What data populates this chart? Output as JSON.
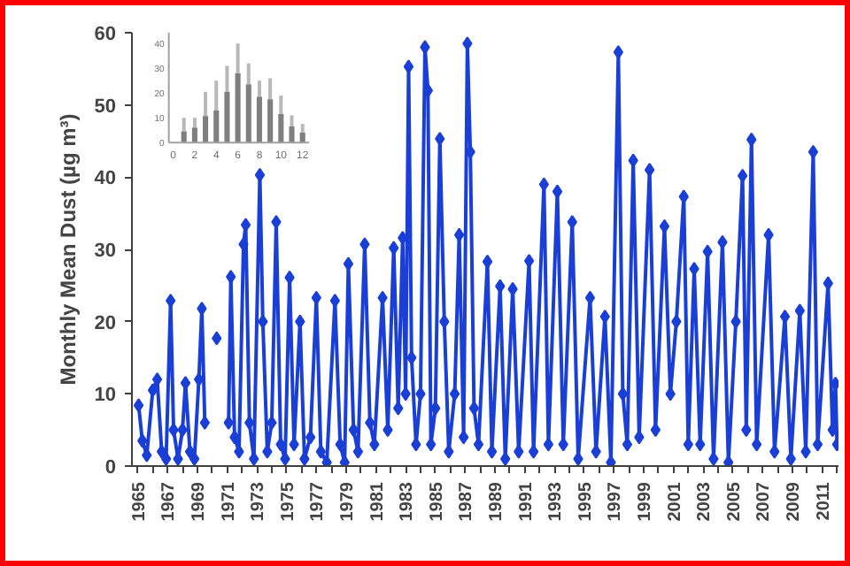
{
  "chart_data": [
    {
      "type": "line",
      "ylabel": "Monthly Mean Dust (µg m³)",
      "marker": "diamond",
      "line_style": "solid",
      "grid": false,
      "xlim": [
        1964.6,
        2012.1
      ],
      "ylim": [
        0,
        60
      ],
      "yticks": [
        0,
        10,
        20,
        30,
        40,
        50,
        60
      ],
      "xticks": [
        1965,
        {
          "value": 1966,
          "label": null
        },
        1967,
        {
          "value": 1968,
          "label": null
        },
        1969,
        {
          "value": 1970,
          "label": null
        },
        1971,
        {
          "value": 1972,
          "label": null
        },
        1973,
        {
          "value": 1974,
          "label": null
        },
        1975,
        {
          "value": 1976,
          "label": null
        },
        1977,
        {
          "value": 1978,
          "label": null
        },
        1979,
        {
          "value": 1980,
          "label": null
        },
        1981,
        {
          "value": 1982,
          "label": null
        },
        1983,
        {
          "value": 1984,
          "label": null
        },
        1985,
        {
          "value": 1986,
          "label": null
        },
        1987,
        {
          "value": 1988,
          "label": null
        },
        1989,
        {
          "value": 1990,
          "label": null
        },
        1991,
        {
          "value": 1992,
          "label": null
        },
        1993,
        {
          "value": 1994,
          "label": null
        },
        1995,
        {
          "value": 1996,
          "label": null
        },
        1997,
        {
          "value": 1998,
          "label": null
        },
        1999,
        {
          "value": 2000,
          "label": null
        },
        2001,
        {
          "value": 2002,
          "label": null
        },
        2003,
        {
          "value": 2004,
          "label": null
        },
        2005,
        {
          "value": 2006,
          "label": null
        },
        2007,
        {
          "value": 2008,
          "label": null
        },
        2009,
        {
          "value": 2010,
          "label": null
        },
        2011,
        {
          "value": 2012,
          "label": null
        }
      ],
      "series": [
        {
          "color": "#1a3fd6",
          "x": [
            1965.05,
            1965.3,
            1965.6,
            1966.0,
            1966.3,
            1966.6,
            1966.9,
            1967.2,
            1967.4,
            1967.7,
            1968.0,
            1968.2,
            1968.5,
            1968.8,
            1969.1,
            1969.3,
            1969.5,
            1969.9,
            1970.3,
            1970.8,
            1971.1,
            1971.25,
            1971.5,
            1971.8,
            1972.1,
            1972.25,
            1972.5,
            1972.8,
            1973.2,
            1973.4,
            1973.7,
            1974.0,
            1974.3,
            1974.6,
            1974.9,
            1975.2,
            1975.5,
            1975.9,
            1976.2,
            1976.6,
            1977.0,
            1977.3,
            1977.7,
            1978.25,
            1978.6,
            1978.9,
            1979.15,
            1979.5,
            1979.8,
            1980.25,
            1980.6,
            1980.9,
            1981.45,
            1981.8,
            1982.2,
            1982.5,
            1982.8,
            1983.0,
            1983.2,
            1983.4,
            1983.7,
            1984.0,
            1984.3,
            1984.5,
            1984.7,
            1985.0,
            1985.3,
            1985.6,
            1985.9,
            1986.3,
            1986.6,
            1986.9,
            1987.15,
            1987.35,
            1987.6,
            1987.9,
            1988.5,
            1988.8,
            1989.35,
            1989.7,
            1990.2,
            1990.6,
            1991.3,
            1991.6,
            1992.3,
            1992.6,
            1993.2,
            1993.6,
            1994.2,
            1994.6,
            1995.4,
            1995.8,
            1996.4,
            1996.8,
            1997.3,
            1997.6,
            1997.9,
            1998.3,
            1998.7,
            1999.4,
            1999.8,
            2000.4,
            2000.8,
            2001.2,
            2001.7,
            2002.0,
            2002.4,
            2002.8,
            2003.3,
            2003.7,
            2004.3,
            2004.7,
            2005.2,
            2005.65,
            2005.9,
            2006.25,
            2006.6,
            2007.4,
            2007.8,
            2008.5,
            2008.9,
            2009.5,
            2009.9,
            2010.4,
            2010.7,
            2011.4,
            2011.7,
            2011.9,
            2012.0
          ],
          "values": [
            8.4,
            3.5,
            1.5,
            10.5,
            12,
            2,
            1,
            22.9,
            5,
            1,
            5,
            11.5,
            2,
            1,
            12,
            21.8,
            6,
            null,
            17.7,
            null,
            6,
            26.2,
            4,
            2,
            30.7,
            33.4,
            6,
            1,
            40.3,
            20,
            2,
            6,
            33.8,
            3,
            1,
            26.1,
            3,
            20,
            1,
            4,
            23.3,
            2,
            0.5,
            22.9,
            3,
            0.5,
            28,
            5,
            2,
            30.7,
            6,
            3,
            23.3,
            5,
            30.2,
            8,
            31.6,
            10,
            55.3,
            15,
            3,
            10,
            58,
            52,
            3,
            8,
            45.3,
            20,
            2,
            10,
            32,
            4,
            58.5,
            43.5,
            8,
            3,
            28.3,
            2,
            24.9,
            1,
            24.5,
            2,
            28.4,
            2,
            39,
            3,
            38,
            3,
            33.8,
            1,
            23.3,
            2,
            20.7,
            0.5,
            57.3,
            10,
            3,
            42.3,
            4,
            41,
            5,
            33.2,
            10,
            20,
            37.3,
            3,
            27.3,
            3,
            29.7,
            1,
            31,
            0.5,
            20,
            40.2,
            5,
            45.2,
            3,
            32,
            2,
            20.7,
            1,
            21.5,
            2,
            43.5,
            3,
            25.3,
            5,
            11.4,
            3
          ]
        }
      ]
    },
    {
      "type": "bar",
      "color": "#7f7f7f",
      "grid": false,
      "x": [
        1,
        2,
        3,
        4,
        5,
        6,
        7,
        8,
        9,
        10,
        11,
        12
      ],
      "values": [
        4.5,
        6,
        10.7,
        13,
        20.5,
        28,
        23.5,
        18.5,
        17.5,
        11.5,
        6.5,
        4
      ],
      "errors": [
        [
          4.5,
          10
        ],
        [
          6,
          10
        ],
        [
          10.7,
          20.5
        ],
        [
          13,
          25
        ],
        [
          20.5,
          31
        ],
        [
          28,
          40
        ],
        [
          23.5,
          32
        ],
        [
          18.5,
          25
        ],
        [
          17.5,
          26
        ],
        [
          11.5,
          19
        ],
        [
          6.5,
          11
        ],
        [
          4,
          7.5
        ]
      ],
      "xlim": [
        -0.4,
        12.6
      ],
      "ylim": [
        0,
        45
      ],
      "xticks": [
        0,
        2,
        4,
        6,
        8,
        10,
        12
      ],
      "yticks": [
        0,
        10,
        20,
        30,
        40
      ]
    }
  ]
}
